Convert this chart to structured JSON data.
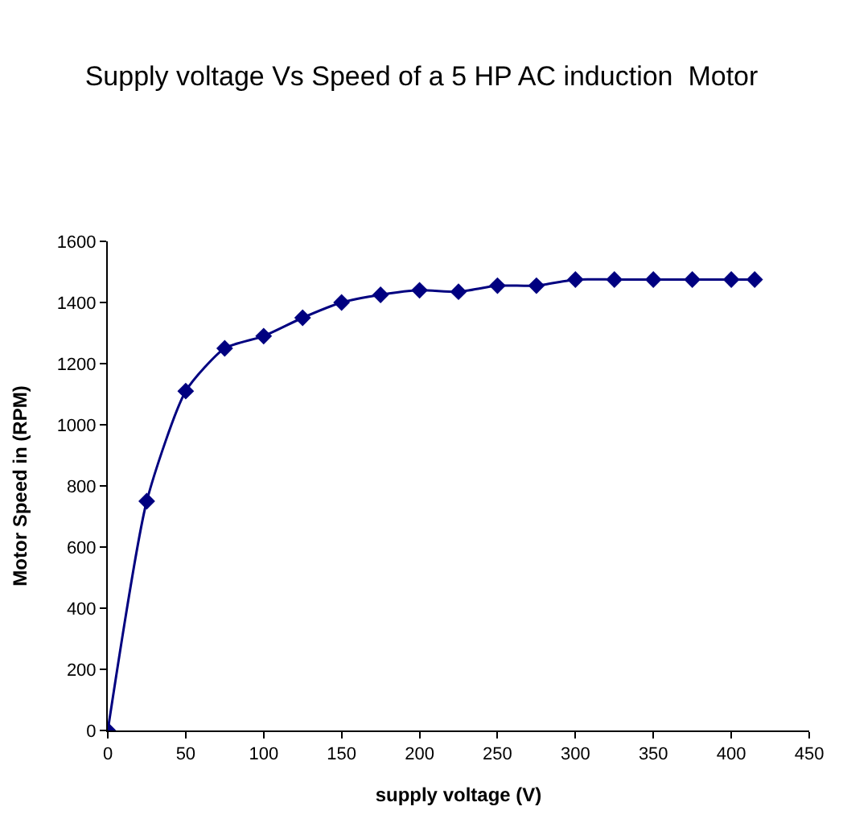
{
  "chart_data": {
    "type": "line",
    "title": "Supply voltage Vs Speed of a 5 HP AC induction  Motor",
    "xlabel": "supply voltage (V)",
    "ylabel": "Motor Speed in (RPM)",
    "x": [
      0,
      25,
      50,
      75,
      100,
      125,
      150,
      175,
      200,
      225,
      250,
      275,
      300,
      325,
      350,
      375,
      400,
      415
    ],
    "series": [
      {
        "color": "#000080",
        "values": [
          0,
          750,
          1110,
          1250,
          1290,
          1350,
          1400,
          1425,
          1440,
          1435,
          1455,
          1455,
          1475,
          1475,
          1475,
          1475,
          1475,
          1475
        ]
      }
    ],
    "xlim": [
      0,
      450
    ],
    "xticks": [
      0,
      50,
      100,
      150,
      200,
      250,
      300,
      350,
      400,
      450
    ],
    "ylim": [
      0,
      1600
    ],
    "yticks": [
      0,
      200,
      400,
      600,
      800,
      1000,
      1200,
      1400,
      1600
    ],
    "grid": false,
    "legend": false,
    "marker": "diamond",
    "line_style": "solid"
  }
}
